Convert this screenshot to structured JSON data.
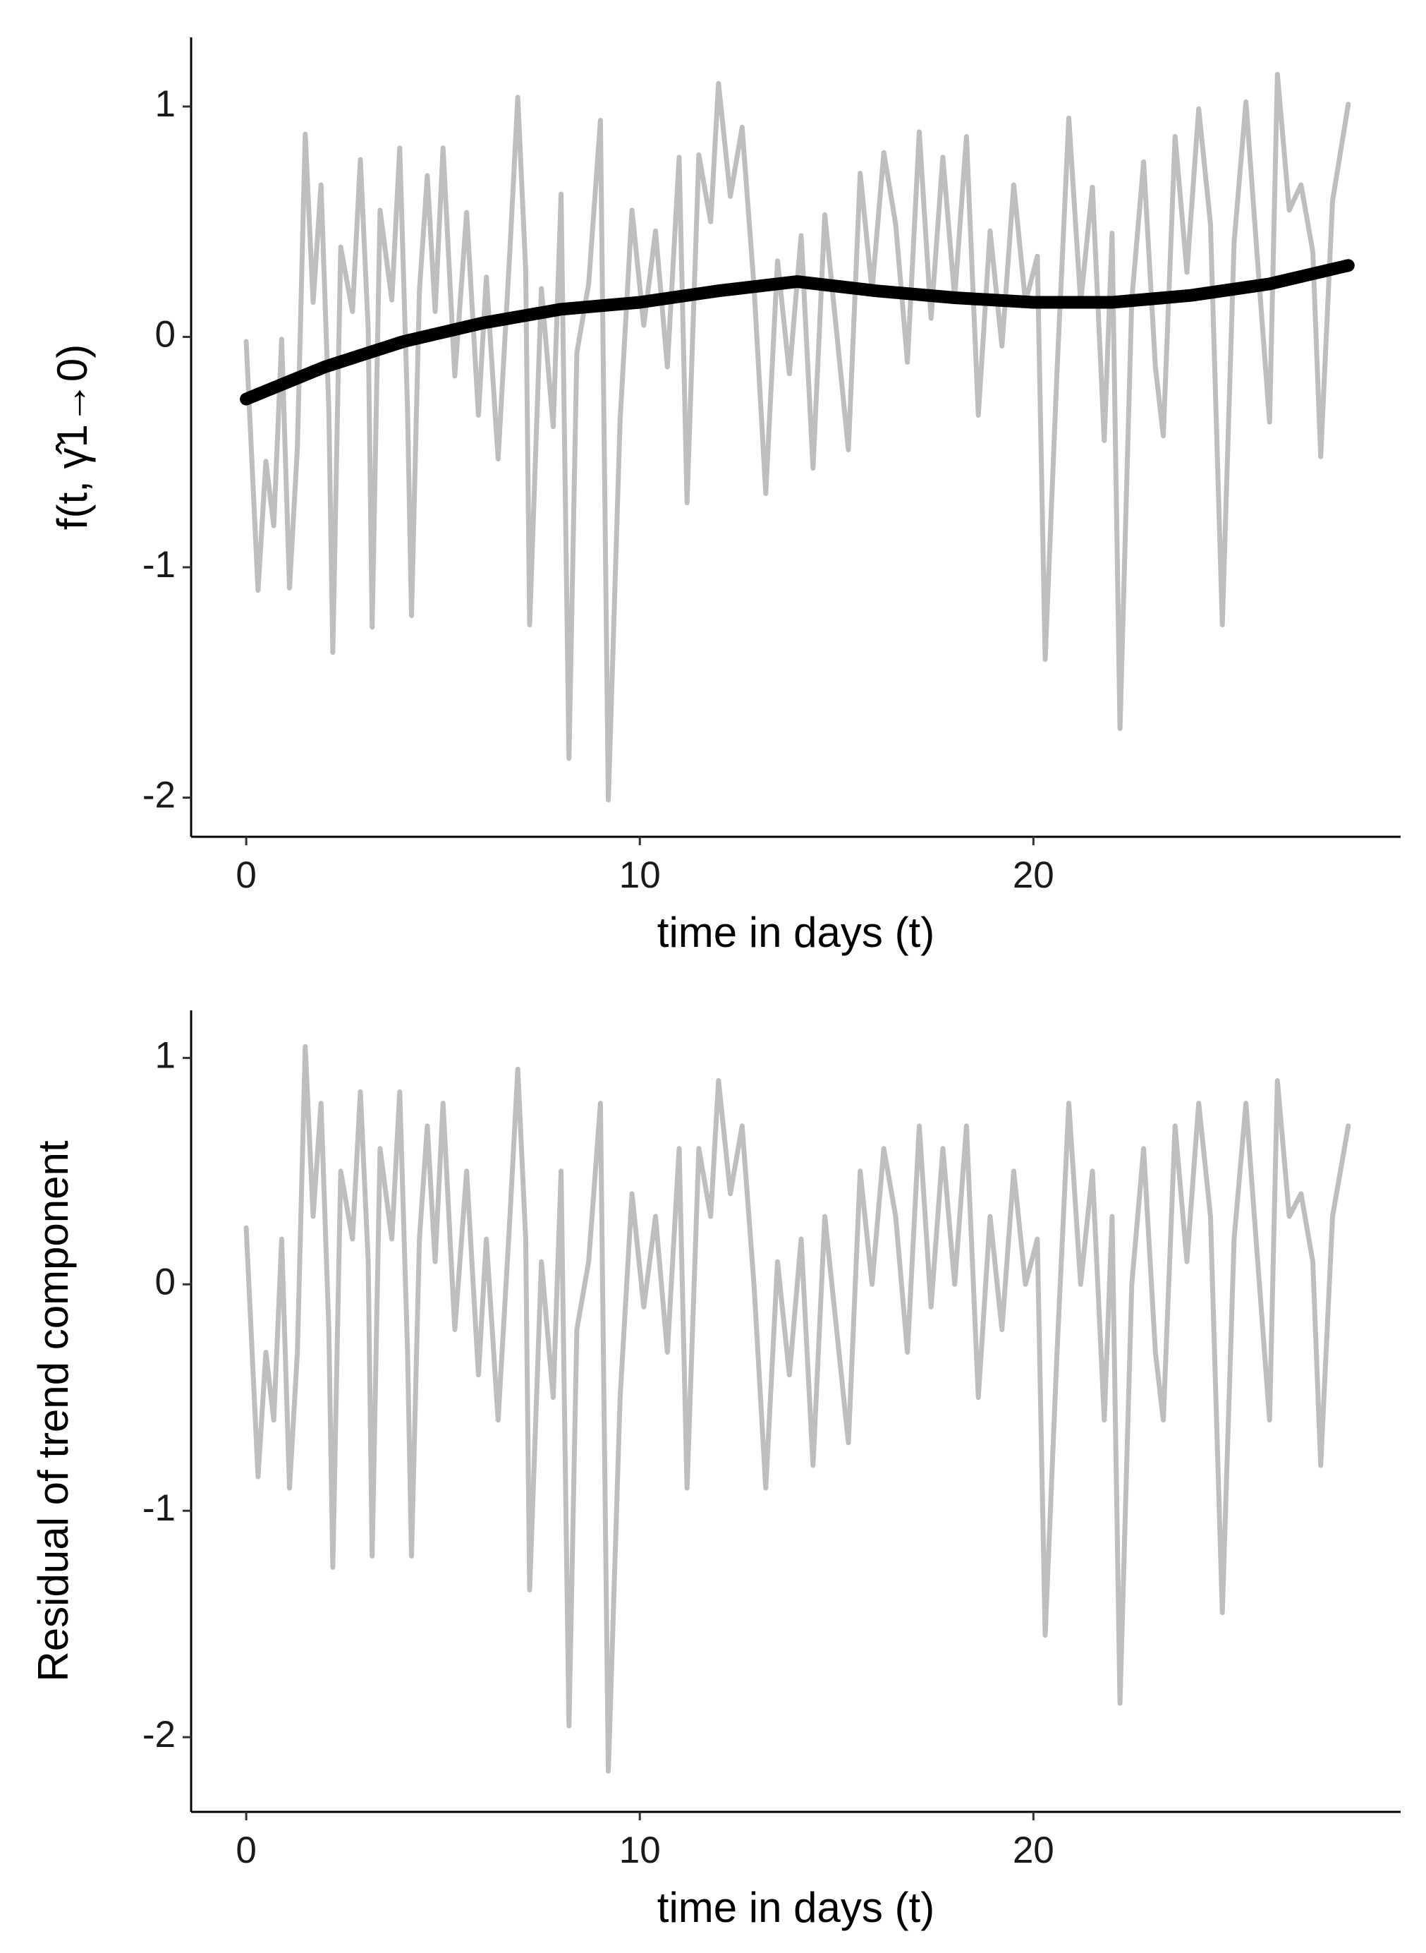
{
  "chart_data": [
    {
      "type": "line",
      "xlabel": "time in days (t)",
      "ylabel": "f(t, γ̂1→0)",
      "xlim": [
        -1.4,
        29.33
      ],
      "ylim": [
        -2.17,
        1.3
      ],
      "xticks": [
        0,
        10,
        20
      ],
      "yticks": [
        -2,
        -1,
        0,
        1
      ],
      "series": [
        {
          "color": "#bebebe",
          "x": [
            0,
            0.15,
            0.3,
            0.5,
            0.7,
            0.9,
            1.1,
            1.3,
            1.5,
            1.7,
            1.9,
            2.1,
            2.2,
            2.4,
            2.7,
            2.9,
            3.1,
            3.2,
            3.4,
            3.7,
            3.9,
            4.1,
            4.2,
            4.4,
            4.6,
            4.8,
            5.0,
            5.3,
            5.6,
            5.9,
            6.1,
            6.4,
            6.7,
            6.9,
            7.1,
            7.2,
            7.5,
            7.8,
            8.0,
            8.2,
            8.4,
            8.7,
            9.0,
            9.2,
            9.5,
            9.8,
            10.1,
            10.4,
            10.7,
            11.0,
            11.2,
            11.5,
            11.8,
            12.0,
            12.3,
            12.6,
            12.9,
            13.2,
            13.5,
            13.8,
            14.1,
            14.4,
            14.7,
            15.0,
            15.3,
            15.6,
            15.9,
            16.2,
            16.5,
            16.8,
            17.1,
            17.4,
            17.7,
            18.0,
            18.3,
            18.6,
            18.9,
            19.2,
            19.5,
            19.8,
            20.1,
            20.3,
            20.6,
            20.9,
            21.2,
            21.5,
            21.8,
            22.0,
            22.2,
            22.5,
            22.8,
            23.1,
            23.3,
            23.6,
            23.9,
            24.2,
            24.5,
            24.8,
            25.1,
            25.4,
            25.7,
            26.0,
            26.2,
            26.5,
            26.8,
            27.1,
            27.3,
            27.6,
            28.0
          ],
          "values": [
            -0.02,
            -0.56,
            -1.1,
            -0.54,
            -0.82,
            -0.01,
            -1.09,
            -0.48,
            0.88,
            0.15,
            0.66,
            -0.32,
            -1.37,
            0.39,
            0.11,
            0.77,
            0.03,
            -1.26,
            0.55,
            0.16,
            0.82,
            -0.32,
            -1.21,
            0.2,
            0.7,
            0.11,
            0.82,
            -0.17,
            0.54,
            -0.34,
            0.26,
            -0.53,
            0.38,
            1.04,
            0.29,
            -1.25,
            0.21,
            -0.39,
            0.62,
            -1.83,
            -0.07,
            0.23,
            0.94,
            -2.01,
            -0.36,
            0.55,
            0.05,
            0.46,
            -0.13,
            0.78,
            -0.72,
            0.79,
            0.5,
            1.1,
            0.61,
            0.91,
            0.22,
            -0.68,
            0.33,
            -0.16,
            0.44,
            -0.57,
            0.53,
            0.02,
            -0.49,
            0.71,
            0.2,
            0.8,
            0.49,
            -0.11,
            0.89,
            0.08,
            0.78,
            0.17,
            0.87,
            -0.34,
            0.46,
            -0.04,
            0.66,
            0.15,
            0.35,
            -1.4,
            -0.15,
            0.95,
            0.15,
            0.65,
            -0.45,
            0.45,
            -1.7,
            0.16,
            0.76,
            -0.13,
            -0.43,
            0.87,
            0.28,
            0.99,
            0.49,
            -1.25,
            0.41,
            1.02,
            0.32,
            -0.37,
            1.14,
            0.55,
            0.66,
            0.37,
            -0.52,
            0.59,
            1.01
          ]
        },
        {
          "color": "#000000",
          "x": [
            0,
            2,
            4,
            6,
            8,
            10,
            12,
            14,
            16,
            18,
            20,
            22,
            24,
            26,
            28
          ],
          "values": [
            -0.27,
            -0.13,
            -0.02,
            0.06,
            0.12,
            0.15,
            0.2,
            0.24,
            0.2,
            0.17,
            0.15,
            0.15,
            0.18,
            0.23,
            0.31
          ]
        }
      ]
    },
    {
      "type": "line",
      "xlabel": "time in days (t)",
      "ylabel": "Residual of trend component",
      "xlim": [
        -1.4,
        29.33
      ],
      "ylim": [
        -2.33,
        1.21
      ],
      "xticks": [
        0,
        10,
        20
      ],
      "yticks": [
        -2,
        -1,
        0,
        1
      ],
      "series": [
        {
          "color": "#bebebe",
          "x": [
            0,
            0.15,
            0.3,
            0.5,
            0.7,
            0.9,
            1.1,
            1.3,
            1.5,
            1.7,
            1.9,
            2.1,
            2.2,
            2.4,
            2.7,
            2.9,
            3.1,
            3.2,
            3.4,
            3.7,
            3.9,
            4.1,
            4.2,
            4.4,
            4.6,
            4.8,
            5.0,
            5.3,
            5.6,
            5.9,
            6.1,
            6.4,
            6.7,
            6.9,
            7.1,
            7.2,
            7.5,
            7.8,
            8.0,
            8.2,
            8.4,
            8.7,
            9.0,
            9.2,
            9.5,
            9.8,
            10.1,
            10.4,
            10.7,
            11.0,
            11.2,
            11.5,
            11.8,
            12.0,
            12.3,
            12.6,
            12.9,
            13.2,
            13.5,
            13.8,
            14.1,
            14.4,
            14.7,
            15.0,
            15.3,
            15.6,
            15.9,
            16.2,
            16.5,
            16.8,
            17.1,
            17.4,
            17.7,
            18.0,
            18.3,
            18.6,
            18.9,
            19.2,
            19.5,
            19.8,
            20.1,
            20.3,
            20.6,
            20.9,
            21.2,
            21.5,
            21.8,
            22.0,
            22.2,
            22.5,
            22.8,
            23.1,
            23.3,
            23.6,
            23.9,
            24.2,
            24.5,
            24.8,
            25.1,
            25.4,
            25.7,
            26.0,
            26.2,
            26.5,
            26.8,
            27.1,
            27.3,
            27.6,
            28.0
          ],
          "values": [
            0.25,
            -0.3,
            -0.85,
            -0.3,
            -0.6,
            0.2,
            -0.9,
            -0.3,
            1.05,
            0.3,
            0.8,
            -0.2,
            -1.25,
            0.5,
            0.2,
            0.85,
            0.1,
            -1.2,
            0.6,
            0.2,
            0.85,
            -0.3,
            -1.2,
            0.2,
            0.7,
            0.1,
            0.8,
            -0.2,
            0.5,
            -0.4,
            0.2,
            -0.6,
            0.3,
            0.95,
            0.2,
            -1.35,
            0.1,
            -0.5,
            0.5,
            -1.95,
            -0.2,
            0.1,
            0.8,
            -2.15,
            -0.5,
            0.4,
            -0.1,
            0.3,
            -0.3,
            0.6,
            -0.9,
            0.6,
            0.3,
            0.9,
            0.4,
            0.7,
            0,
            -0.9,
            0.1,
            -0.4,
            0.2,
            -0.8,
            0.3,
            -0.2,
            -0.7,
            0.5,
            0,
            0.6,
            0.3,
            -0.3,
            0.7,
            -0.1,
            0.6,
            0,
            0.7,
            -0.5,
            0.3,
            -0.2,
            0.5,
            0,
            0.2,
            -1.55,
            -0.3,
            0.8,
            0,
            0.5,
            -0.6,
            0.3,
            -1.85,
            0,
            0.6,
            -0.3,
            -0.6,
            0.7,
            0.1,
            0.8,
            0.3,
            -1.45,
            0.2,
            0.8,
            0.1,
            -0.6,
            0.9,
            0.3,
            0.4,
            0.1,
            -0.8,
            0.3,
            0.7
          ]
        }
      ]
    }
  ]
}
